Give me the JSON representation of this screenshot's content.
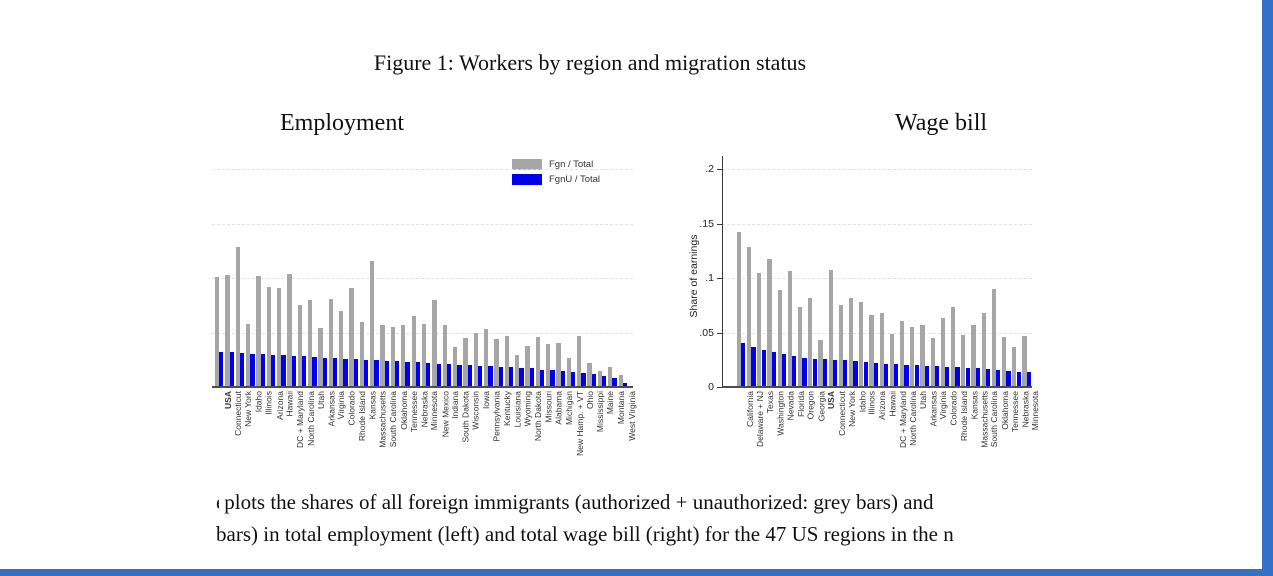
{
  "title": "Figure 1: Workers by region and migration status",
  "colors": {
    "fgn_bar": "#a6a6a6",
    "fgnu_bar": "#0000ee",
    "viewer_edge_blue": "#3470c8",
    "axis": "#3a3a3a"
  },
  "legend": {
    "items": [
      {
        "label": "Fgn / Total",
        "color": "#a6a6a6"
      },
      {
        "label": "FgnU / Total",
        "color": "#0000ee"
      }
    ]
  },
  "caption": {
    "line1_clipped_char": "e",
    "line1": " plots the shares of all foreign immigrants (authorized + unauthorized: grey bars) and",
    "line2": "bars) in total employment (left) and total wage bill (right) for the 47 US regions in the n"
  },
  "chart_data": [
    {
      "type": "bar",
      "title": "Employment",
      "ylabel": "",
      "ylim": [
        0,
        0.2
      ],
      "grid": "dashed horizontal at .05 steps",
      "legend_position": "top-right of left panel",
      "bold_category": "USA",
      "note": "left y-axis and higher-share regions cropped out of view; regions sorted by FgnU/Total descending",
      "categories": [
        "USA",
        "Connecticut",
        "New York",
        "Idaho",
        "Illinois",
        "Arizona",
        "Hawaii",
        "DC + Maryland",
        "North Carolina",
        "Utah",
        "Arkansas",
        "Virginia",
        "Colorado",
        "Rhode Island",
        "Kansas",
        "Massachusetts",
        "South Carolina",
        "Oklahoma",
        "Tennessee",
        "Nebraska",
        "Minnesota",
        "New Mexico",
        "Indiana",
        "South Dakota",
        "Wisconsin",
        "Iowa",
        "Pennsylvania",
        "Kentucky",
        "Louisiana",
        "Wyoming",
        "North Dakota",
        "Missouri",
        "Alabama",
        "Michigan",
        "New Hamp. + VT",
        "Ohio",
        "Mississippi",
        "Maine",
        "Montana",
        "West Virginia"
      ],
      "series": [
        {
          "name": "Fgn / Total",
          "color": "#a6a6a6",
          "values": [
            0.101,
            0.103,
            0.128,
            0.058,
            0.102,
            0.092,
            0.091,
            0.104,
            0.075,
            0.08,
            0.054,
            0.081,
            0.07,
            0.091,
            0.06,
            0.116,
            0.057,
            0.055,
            0.057,
            0.065,
            0.058,
            0.08,
            0.057,
            0.037,
            0.045,
            0.05,
            0.053,
            0.044,
            0.047,
            0.029,
            0.038,
            0.046,
            0.039,
            0.04,
            0.027,
            0.047,
            0.022,
            0.015,
            0.018,
            0.011
          ]
        },
        {
          "name": "FgnU / Total",
          "color": "#0000ee",
          "values": [
            0.032,
            0.0318,
            0.031,
            0.0305,
            0.03,
            0.0295,
            0.029,
            0.0288,
            0.028,
            0.0275,
            0.027,
            0.0265,
            0.026,
            0.0258,
            0.0252,
            0.0246,
            0.024,
            0.0235,
            0.023,
            0.0225,
            0.022,
            0.0215,
            0.021,
            0.0205,
            0.02,
            0.0195,
            0.019,
            0.0185,
            0.018,
            0.0175,
            0.017,
            0.016,
            0.0155,
            0.015,
            0.014,
            0.013,
            0.012,
            0.01,
            0.008,
            0.0035
          ]
        }
      ]
    },
    {
      "type": "bar",
      "title": "Wage bill",
      "ylabel": "Share of earnings",
      "ylim": [
        0,
        0.2
      ],
      "yticks": [
        {
          "label": "0",
          "value": 0
        },
        {
          "label": ".05",
          "value": 0.05
        },
        {
          "label": ".1",
          "value": 0.1
        },
        {
          "label": ".15",
          "value": 0.15
        },
        {
          "label": ".2",
          "value": 0.2
        }
      ],
      "grid": "dashed horizontal at .05 steps",
      "bold_category": "USA",
      "note": "chart cropped at right edge of view after Minnesota",
      "categories": [
        "California",
        "Delaware + NJ",
        "Texas",
        "Washington",
        "Nevada",
        "Florida",
        "Oregon",
        "Georgia",
        "USA",
        "Connecticut",
        "New York",
        "Idaho",
        "Illinois",
        "Arizona",
        "Hawaii",
        "DC + Maryland",
        "North Carolina",
        "Utah",
        "Arkansas",
        "Virginia",
        "Colorado",
        "Rhode Island",
        "Kansas",
        "Massachusetts",
        "South Carolina",
        "Oklahoma",
        "Tennessee",
        "Nebraska",
        "Minnesota"
      ],
      "series": [
        {
          "name": "Fgn / Total",
          "color": "#a6a6a6",
          "values": [
            0.142,
            0.128,
            0.105,
            0.117,
            0.089,
            0.106,
            0.073,
            0.082,
            0.043,
            0.107,
            0.075,
            0.082,
            0.078,
            0.066,
            0.068,
            0.049,
            0.061,
            0.055,
            0.057,
            0.045,
            0.063,
            0.073,
            0.048,
            0.057,
            0.068,
            0.09,
            0.046,
            0.037,
            0.047
          ]
        },
        {
          "name": "FgnU / Total",
          "color": "#0000ee",
          "values": [
            0.04,
            0.037,
            0.034,
            0.032,
            0.03,
            0.028,
            0.0265,
            0.026,
            0.0255,
            0.025,
            0.0245,
            0.0235,
            0.023,
            0.022,
            0.0215,
            0.021,
            0.0205,
            0.02,
            0.0195,
            0.019,
            0.0185,
            0.018,
            0.0175,
            0.017,
            0.0165,
            0.016,
            0.0145,
            0.0135,
            0.0138
          ]
        }
      ]
    }
  ]
}
